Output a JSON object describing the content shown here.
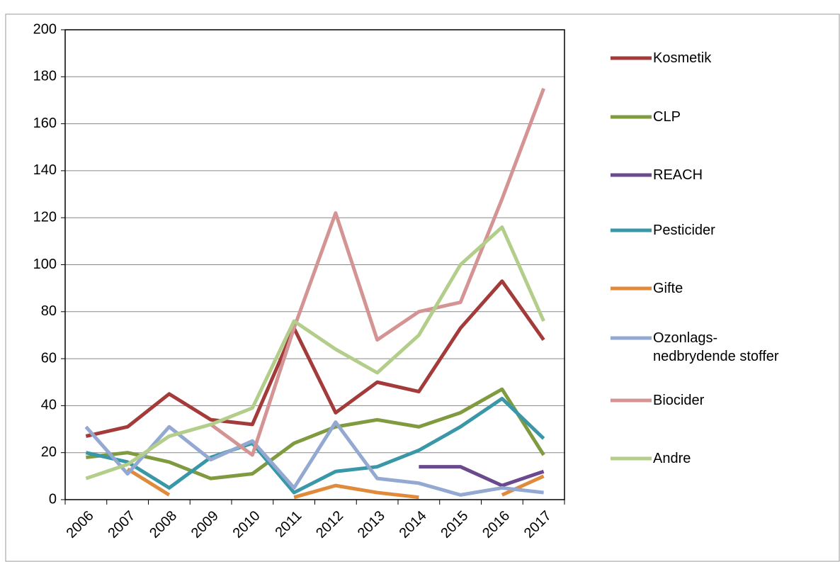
{
  "chart_data": {
    "type": "line",
    "categories": [
      "2006",
      "2007",
      "2008",
      "2009",
      "2010",
      "2011",
      "2012",
      "2013",
      "2014",
      "2015",
      "2016",
      "2017"
    ],
    "series": [
      {
        "name": "Kosmetik",
        "color": "#a33b3a",
        "values": [
          27,
          31,
          45,
          34,
          32,
          73,
          37,
          50,
          46,
          73,
          93,
          68
        ]
      },
      {
        "name": "CLP",
        "color": "#7f9a3f",
        "values": [
          18,
          20,
          16,
          9,
          11,
          24,
          31,
          34,
          31,
          37,
          47,
          19
        ]
      },
      {
        "name": "REACH",
        "color": "#6a4a8c",
        "values": [
          null,
          null,
          null,
          null,
          null,
          null,
          null,
          null,
          14,
          14,
          6,
          12
        ]
      },
      {
        "name": "Pesticider",
        "color": "#3a97a8",
        "values": [
          20,
          16,
          5,
          18,
          24,
          3,
          12,
          14,
          21,
          31,
          43,
          26
        ]
      },
      {
        "name": "Gifte",
        "color": "#e08a3c",
        "values": [
          null,
          13,
          2,
          null,
          null,
          1,
          6,
          3,
          1,
          null,
          2,
          10
        ]
      },
      {
        "name": "Ozonlags-nedbrydende stoffer",
        "color": "#93a9d2",
        "values": [
          31,
          11,
          31,
          17,
          25,
          5,
          33,
          9,
          7,
          2,
          5,
          3
        ]
      },
      {
        "name": "Biocider",
        "color": "#d49494",
        "values": [
          null,
          null,
          null,
          32,
          19,
          73,
          122,
          68,
          80,
          84,
          128,
          175
        ]
      },
      {
        "name": "Andre",
        "color": "#b3ce8a",
        "values": [
          9,
          15,
          27,
          32,
          39,
          76,
          64,
          54,
          70,
          100,
          116,
          76
        ]
      }
    ],
    "ylim": [
      0,
      200
    ],
    "yticks": [
      0,
      20,
      40,
      60,
      80,
      100,
      120,
      140,
      160,
      180,
      200
    ],
    "grid": true,
    "legend": "right"
  }
}
